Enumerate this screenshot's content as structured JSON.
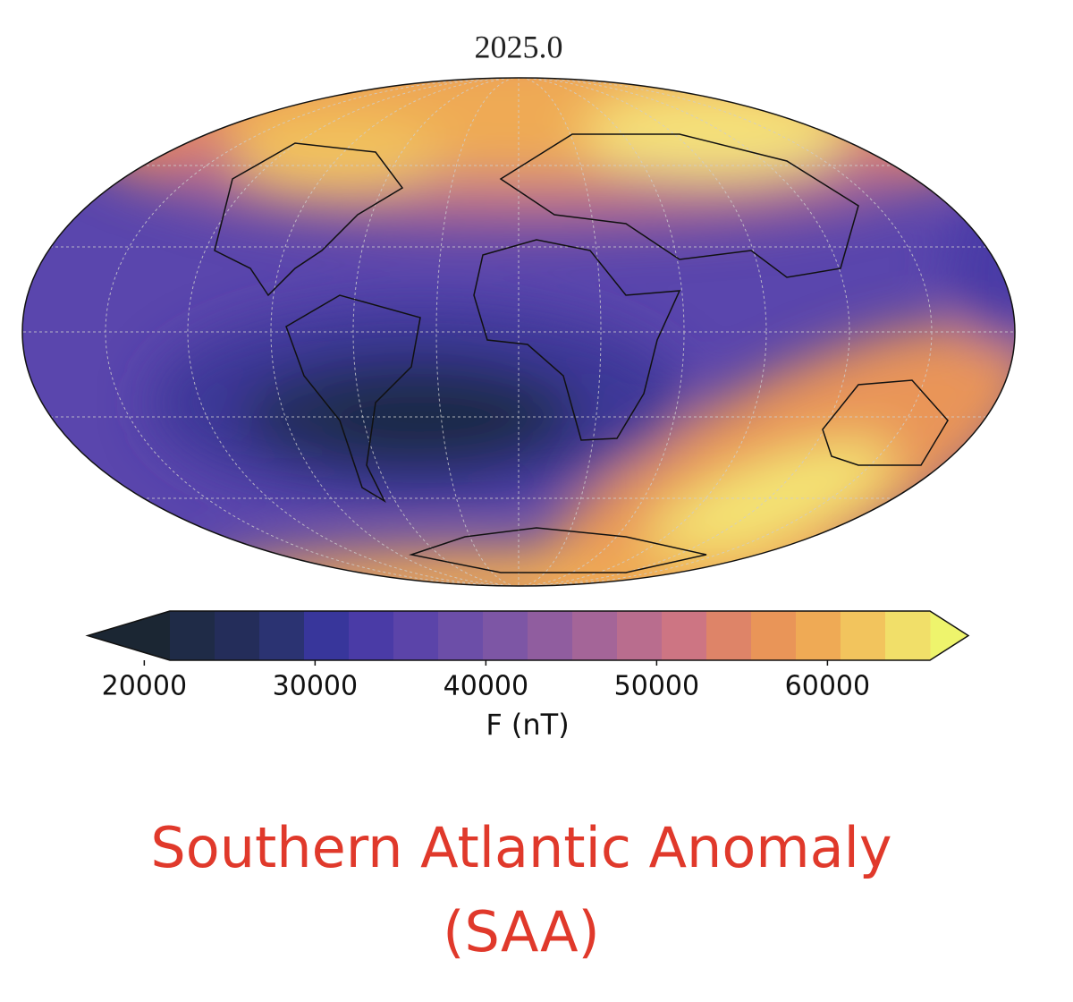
{
  "chart_data": {
    "type": "colorbar-map",
    "title": "2025.0",
    "colorbar": {
      "label": "F (nT)",
      "xlim": [
        21500,
        66000
      ],
      "xticks": [
        20000,
        30000,
        40000,
        50000,
        60000
      ],
      "colors": [
        "#1f2b47",
        "#242d5a",
        "#2b3372",
        "#38369b",
        "#4a3ba6",
        "#5b44a9",
        "#6c4ea8",
        "#7d56a5",
        "#905d9f",
        "#a46598",
        "#b96d8e",
        "#cd7583",
        "#de8468",
        "#e99558",
        "#efaa55",
        "#f2c45d",
        "#f1df69"
      ],
      "under_color": "#1b2633",
      "over_color": "#eef46c"
    },
    "caption": [
      "Southern Atlantic Anomaly",
      "(SAA)"
    ]
  }
}
